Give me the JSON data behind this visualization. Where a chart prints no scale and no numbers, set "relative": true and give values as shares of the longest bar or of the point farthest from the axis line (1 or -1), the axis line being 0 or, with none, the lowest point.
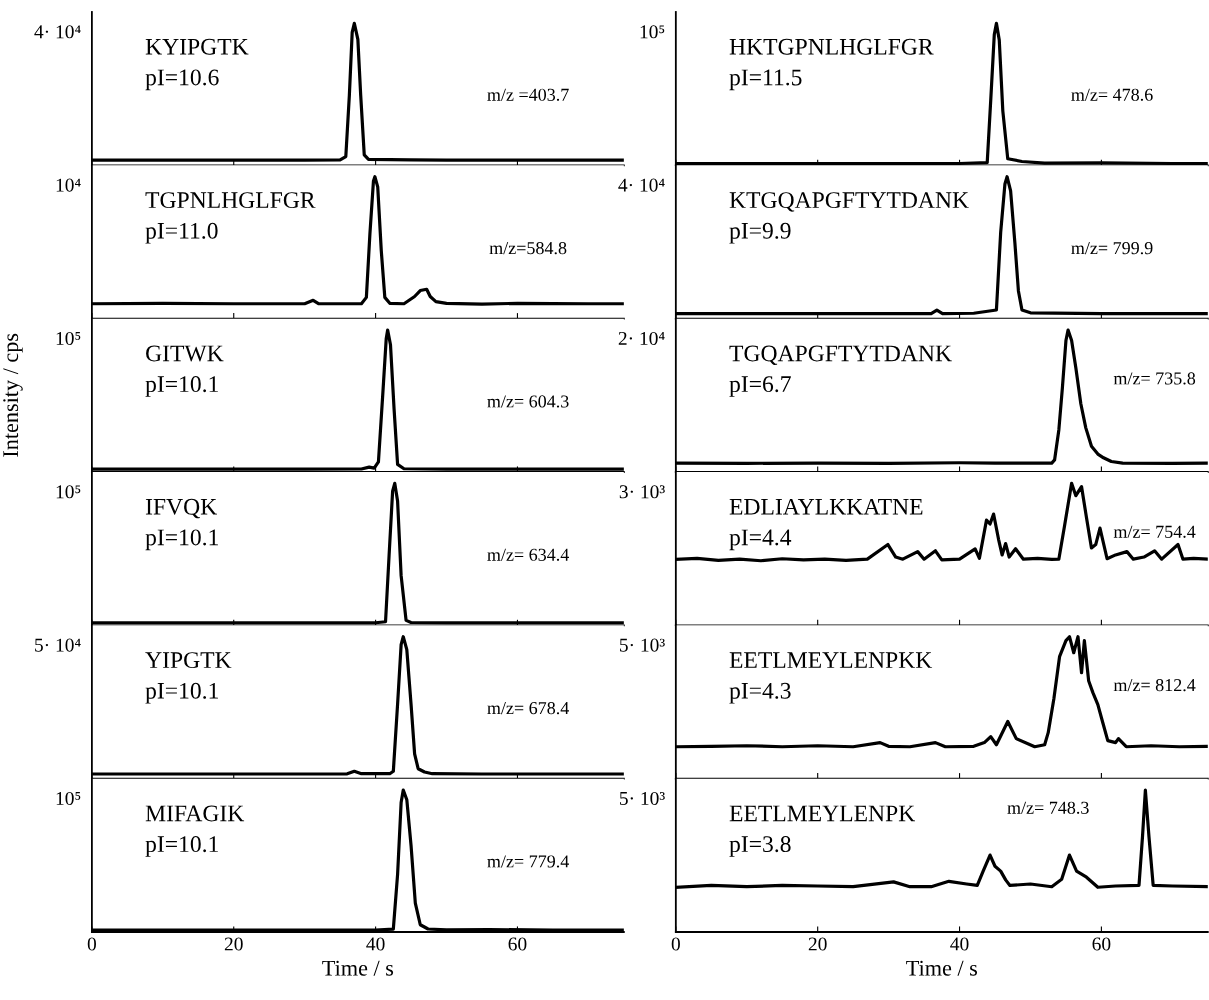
{
  "chart_data": [
    {
      "type": "line",
      "relative": true,
      "x": [
        0,
        10,
        20,
        30,
        35,
        35.8,
        36.3,
        36.7,
        37.0,
        37.5,
        37.9,
        38.4,
        39,
        45,
        50,
        60,
        70,
        75
      ],
      "series": [
        {
          "color": "#000000",
          "values": [
            0.037,
            0.037,
            0.037,
            0.037,
            0.039,
            0.062,
            0.493,
            0.936,
            1,
            0.887,
            0.493,
            0.074,
            0.042,
            0.039,
            0.037,
            0.037,
            0.037,
            0.037
          ]
        }
      ],
      "xlim": [
        0,
        75
      ],
      "xticks": [
        0,
        20,
        40,
        60
      ],
      "tick_labels": false,
      "annotations": [
        "KYIPGTK",
        "pI=10.6",
        "m/z =403.7",
        "4· 10⁴"
      ]
    },
    {
      "type": "line",
      "relative": true,
      "x": [
        0,
        10,
        20,
        30,
        31.2,
        32,
        38,
        38.7,
        39.2,
        39.7,
        39.9,
        40.3,
        40.8,
        41.3,
        42,
        44,
        45.5,
        46.3,
        47.2,
        47.7,
        48.5,
        50,
        55,
        60,
        70,
        75
      ],
      "series": [
        {
          "color": "#000000",
          "values": [
            0.105,
            0.108,
            0.105,
            0.105,
            0.129,
            0.105,
            0.105,
            0.15,
            0.599,
            0.97,
            1,
            0.928,
            0.479,
            0.15,
            0.108,
            0.105,
            0.156,
            0.198,
            0.207,
            0.156,
            0.12,
            0.108,
            0.102,
            0.108,
            0.105,
            0.105
          ]
        }
      ],
      "xlim": [
        0,
        75
      ],
      "xticks": [
        0,
        20,
        40,
        60
      ],
      "tick_labels": false,
      "annotations": [
        "TGPNLHGLFGR",
        "pI=11.0",
        "m/z=584.8",
        "10⁴"
      ]
    },
    {
      "type": "line",
      "relative": true,
      "x": [
        0,
        10,
        20,
        30,
        38,
        39.1,
        39.8,
        40.4,
        41.0,
        41.5,
        41.7,
        42.1,
        42.6,
        43.1,
        44,
        50,
        60,
        70,
        75
      ],
      "series": [
        {
          "color": "#000000",
          "values": [
            0.02,
            0.02,
            0.02,
            0.02,
            0.021,
            0.034,
            0.027,
            0.072,
            0.538,
            0.941,
            1,
            0.896,
            0.448,
            0.054,
            0.023,
            0.02,
            0.02,
            0.02,
            0.02
          ]
        }
      ],
      "xlim": [
        0,
        75
      ],
      "xticks": [
        0,
        20,
        40,
        60
      ],
      "tick_labels": false,
      "ylabel": "Intensity / cps",
      "annotations": [
        "GITWK",
        "pI=10.1",
        "m/z= 604.3",
        "10⁵"
      ]
    },
    {
      "type": "line",
      "relative": true,
      "x": [
        0,
        10,
        20,
        30,
        40,
        41.4,
        41.9,
        42.4,
        42.7,
        43.1,
        43.6,
        44.3,
        45,
        50,
        60,
        70,
        75
      ],
      "series": [
        {
          "color": "#000000",
          "values": [
            0.018,
            0.018,
            0.018,
            0.018,
            0.018,
            0.025,
            0.49,
            0.945,
            1,
            0.875,
            0.35,
            0.035,
            0.02,
            0.018,
            0.018,
            0.018,
            0.018
          ]
        }
      ],
      "xlim": [
        0,
        75
      ],
      "xticks": [
        0,
        20,
        40,
        60
      ],
      "tick_labels": false,
      "annotations": [
        "IFVQK",
        "pI=10.1",
        "m/z= 634.4",
        "10⁵"
      ]
    },
    {
      "type": "line",
      "relative": true,
      "x": [
        0,
        10,
        20,
        30,
        36,
        37.0,
        38,
        42,
        42.5,
        43.1,
        43.6,
        43.9,
        44.4,
        45.0,
        45.5,
        46.0,
        46.9,
        48,
        55,
        65,
        75
      ],
      "series": [
        {
          "color": "#000000",
          "values": [
            0.033,
            0.033,
            0.033,
            0.033,
            0.034,
            0.052,
            0.035,
            0.035,
            0.052,
            0.524,
            0.944,
            1,
            0.909,
            0.524,
            0.175,
            0.07,
            0.047,
            0.035,
            0.033,
            0.033,
            0.033
          ]
        }
      ],
      "xlim": [
        0,
        75
      ],
      "xticks": [
        0,
        20,
        40,
        60
      ],
      "tick_labels": false,
      "annotations": [
        "YIPGTK",
        "pI=10.1",
        "m/z= 678.4",
        "5· 10⁴"
      ]
    },
    {
      "type": "line",
      "relative": true,
      "x": [
        0,
        10,
        20,
        30,
        40,
        42.5,
        43.1,
        43.6,
        43.9,
        44.4,
        45.0,
        45.6,
        46.3,
        47.4,
        50,
        56,
        65,
        75
      ],
      "series": [
        {
          "color": "#000000",
          "values": [
            0.014,
            0.014,
            0.014,
            0.014,
            0.014,
            0.02,
            0.405,
            0.912,
            1,
            0.932,
            0.608,
            0.203,
            0.051,
            0.021,
            0.015,
            0.017,
            0.014,
            0.014
          ]
        }
      ],
      "xlim": [
        0,
        75
      ],
      "xticks": [
        0,
        20,
        40,
        60
      ],
      "tick_labels": "x",
      "xlabel": "Time / s",
      "annotations": [
        "MIFAGIK",
        "pI=10.1",
        "m/z= 779.4",
        "10⁵"
      ]
    },
    {
      "type": "line",
      "relative": true,
      "x": [
        0,
        10,
        20,
        30,
        40,
        43.9,
        44.4,
        44.9,
        45.2,
        45.6,
        46.1,
        46.8,
        48.8,
        52,
        60,
        70,
        75
      ],
      "series": [
        {
          "color": "#000000",
          "values": [
            0.013,
            0.013,
            0.013,
            0.013,
            0.013,
            0.019,
            0.461,
            0.922,
            1,
            0.883,
            0.384,
            0.046,
            0.027,
            0.015,
            0.017,
            0.013,
            0.013
          ]
        }
      ],
      "xlim": [
        0,
        75
      ],
      "xticks": [
        0,
        20,
        40,
        60
      ],
      "tick_labels": false,
      "annotations": [
        "HKTGPNLHGLFGR",
        "pI=11.5",
        "m/z= 478.6",
        "10⁵"
      ]
    },
    {
      "type": "line",
      "relative": true,
      "x": [
        0,
        10,
        20,
        30,
        36,
        36.8,
        37.6,
        42,
        45.2,
        45.8,
        46.4,
        46.7,
        47.2,
        47.8,
        48.3,
        48.8,
        50,
        60,
        70,
        75
      ],
      "series": [
        {
          "color": "#000000",
          "values": [
            0.035,
            0.035,
            0.035,
            0.035,
            0.036,
            0.06,
            0.036,
            0.038,
            0.061,
            0.608,
            0.949,
            1,
            0.9,
            0.535,
            0.195,
            0.061,
            0.041,
            0.035,
            0.035,
            0.035
          ]
        }
      ],
      "xlim": [
        0,
        75
      ],
      "xticks": [
        0,
        20,
        40,
        60
      ],
      "tick_labels": false,
      "annotations": [
        "KTGQAPGFTYTDANK",
        "pI=9.9",
        "m/z= 799.9",
        "4· 10⁴"
      ]
    },
    {
      "type": "line",
      "relative": true,
      "x": [
        0,
        10,
        20,
        30,
        40,
        45,
        50,
        53,
        53.4,
        54,
        54.5,
        55,
        55.3,
        55.8,
        56.4,
        57.1,
        57.8,
        58.6,
        59.5,
        60.3,
        61.4,
        63,
        70,
        75
      ],
      "series": [
        {
          "color": "#000000",
          "values": [
            0.062,
            0.061,
            0.063,
            0.061,
            0.065,
            0.063,
            0.062,
            0.063,
            0.085,
            0.296,
            0.593,
            0.926,
            1,
            0.926,
            0.733,
            0.481,
            0.311,
            0.181,
            0.126,
            0.1,
            0.074,
            0.063,
            0.061,
            0.063
          ]
        }
      ],
      "xlim": [
        0,
        75
      ],
      "xticks": [
        0,
        20,
        40,
        60
      ],
      "tick_labels": false,
      "annotations": [
        "TGQAPGFTYTDANK",
        "pI=6.7",
        "m/z= 735.8",
        "2· 10⁴"
      ]
    },
    {
      "type": "line",
      "relative": true,
      "x": [
        0,
        3,
        6,
        9,
        12,
        15,
        18,
        21,
        24,
        27,
        29.9,
        31,
        32,
        34.1,
        35,
        36.6,
        37.5,
        40,
        42.2,
        42.8,
        43.8,
        44.3,
        44.8,
        45.5,
        46,
        46.5,
        47,
        47.9,
        49,
        51,
        53,
        54,
        54.8,
        55.8,
        56.4,
        57.2,
        57.9,
        58.6,
        59.2,
        59.8,
        60.8,
        62,
        63.6,
        64.5,
        66,
        67.5,
        68.5,
        70.8,
        71.5,
        73,
        75
      ],
      "series": [
        {
          "color": "#000000",
          "values": [
            0.464,
            0.472,
            0.458,
            0.466,
            0.455,
            0.469,
            0.461,
            0.466,
            0.458,
            0.466,
            0.569,
            0.481,
            0.466,
            0.519,
            0.466,
            0.525,
            0.461,
            0.466,
            0.539,
            0.472,
            0.741,
            0.714,
            0.784,
            0.606,
            0.496,
            0.576,
            0.481,
            0.539,
            0.466,
            0.472,
            0.464,
            0.466,
            0.7,
            1,
            0.913,
            0.977,
            0.758,
            0.545,
            0.569,
            0.685,
            0.469,
            0.496,
            0.519,
            0.466,
            0.481,
            0.525,
            0.466,
            0.569,
            0.466,
            0.472,
            0.466
          ]
        }
      ],
      "xlim": [
        0,
        75
      ],
      "xticks": [
        0,
        20,
        40,
        60
      ],
      "tick_labels": false,
      "annotations": [
        "EDLIAYLKKATNE",
        "pI=4.4",
        "m/z= 754.4",
        "3· 10³"
      ]
    },
    {
      "type": "line",
      "relative": true,
      "x": [
        0,
        5,
        10,
        15,
        20,
        25,
        28.8,
        30,
        33,
        36.6,
        38,
        42,
        43.5,
        44.4,
        45.2,
        46.8,
        48,
        50.6,
        52,
        52.5,
        53.3,
        54.1,
        55,
        55.5,
        56.1,
        56.7,
        57.2,
        57.6,
        58.2,
        58.8,
        59.5,
        60.2,
        60.9,
        62,
        62.4,
        63.5,
        67,
        71,
        75
      ],
      "series": [
        {
          "color": "#000000",
          "values": [
            0.225,
            0.228,
            0.232,
            0.225,
            0.232,
            0.225,
            0.254,
            0.228,
            0.225,
            0.254,
            0.225,
            0.228,
            0.254,
            0.296,
            0.239,
            0.403,
            0.282,
            0.225,
            0.239,
            0.324,
            0.563,
            0.859,
            0.972,
            1,
            0.887,
            1,
            0.746,
            0.972,
            0.69,
            0.606,
            0.521,
            0.394,
            0.268,
            0.254,
            0.282,
            0.225,
            0.232,
            0.225,
            0.228
          ]
        }
      ],
      "xlim": [
        0,
        75
      ],
      "xticks": [
        0,
        20,
        40,
        60
      ],
      "tick_labels": false,
      "annotations": [
        "EETLMEYLENPKK",
        "pI=4.3",
        "m/z= 812.4",
        "5· 10³"
      ]
    },
    {
      "type": "line",
      "relative": true,
      "x": [
        0,
        5,
        10,
        15,
        20,
        25,
        30.7,
        33,
        36,
        38.5,
        41,
        42.5,
        43.3,
        44.3,
        45,
        45.8,
        46.5,
        47.1,
        50,
        53,
        54.4,
        55.5,
        56.5,
        57.9,
        59.5,
        62,
        65.3,
        65.8,
        66.2,
        66.7,
        67.3,
        70,
        75
      ],
      "series": [
        {
          "color": "#000000",
          "values": [
            0.315,
            0.328,
            0.319,
            0.328,
            0.324,
            0.319,
            0.353,
            0.319,
            0.319,
            0.357,
            0.338,
            0.328,
            0.425,
            0.542,
            0.463,
            0.429,
            0.367,
            0.328,
            0.338,
            0.319,
            0.371,
            0.542,
            0.429,
            0.386,
            0.315,
            0.324,
            0.328,
            0.676,
            1,
            0.676,
            0.328,
            0.324,
            0.319
          ]
        }
      ],
      "xlim": [
        0,
        75
      ],
      "xticks": [
        0,
        20,
        40,
        60
      ],
      "tick_labels": "x",
      "xlabel": "Time / s",
      "annotations": [
        "EETLMEYLENPK",
        "pI=3.8",
        "m/z= 748.3",
        "5· 10³"
      ]
    }
  ]
}
